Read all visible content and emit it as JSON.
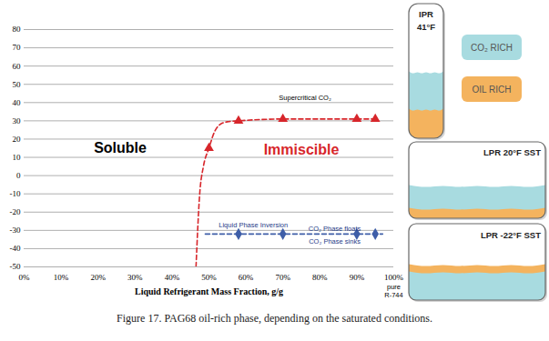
{
  "chart_data": {
    "type": "scatter",
    "x_label": "Liquid Refrigerant Mass Fraction, g/g",
    "xlim": [
      0,
      100
    ],
    "xticks": [
      {
        "value": 0,
        "label": "0%"
      },
      {
        "value": 10,
        "label": "10%"
      },
      {
        "value": 20,
        "label": "20%"
      },
      {
        "value": 30,
        "label": "30%"
      },
      {
        "value": 40,
        "label": "40%"
      },
      {
        "value": 50,
        "label": "50%"
      },
      {
        "value": 60,
        "label": "60%"
      },
      {
        "value": 70,
        "label": "70%"
      },
      {
        "value": 80,
        "label": "80%"
      },
      {
        "value": 90,
        "label": "90%"
      },
      {
        "value": 100,
        "label": "100%"
      }
    ],
    "ylim": [
      -50,
      80
    ],
    "yticks": [
      -50,
      -40,
      -30,
      -20,
      -10,
      0,
      10,
      20,
      30,
      40,
      50,
      60,
      70,
      80
    ],
    "grid": "y",
    "series": [
      {
        "type": "line",
        "color": "#d7262b",
        "line_style": "dashed",
        "x": [
          46.5,
          47.5,
          48.5,
          50,
          51.5,
          53,
          55,
          58,
          70,
          90,
          95
        ],
        "values": [
          -50,
          -10,
          5,
          15,
          24,
          28,
          29.5,
          30,
          31,
          31,
          31
        ]
      },
      {
        "type": "scatter",
        "color": "#d7262b",
        "marker": "triangle",
        "x": [
          50,
          58,
          70,
          90,
          95
        ],
        "values": [
          15,
          30,
          31,
          31,
          31
        ]
      },
      {
        "type": "line",
        "color": "#3e5ea8",
        "line_style": "dashed",
        "x": [
          49,
          97
        ],
        "values": [
          -32,
          -32
        ]
      },
      {
        "type": "scatter",
        "color": "#3e5ea8",
        "marker": "diamond",
        "x": [
          58,
          70,
          90,
          95
        ],
        "values": [
          -32,
          -32,
          -32,
          -32
        ]
      }
    ],
    "region_labels": [
      {
        "text": "Soluble",
        "x": 26,
        "y": 15,
        "color": "#000000"
      },
      {
        "text": "Immiscible",
        "x": 75,
        "y": 14,
        "color": "#d7262b"
      }
    ],
    "annotations": [
      {
        "text": "Supercritical CO₂",
        "x": 76,
        "y": 43,
        "color": "#000000"
      },
      {
        "text": "Liquid Phase Inversion",
        "x": 62,
        "y": -27,
        "color": "#1f3c88"
      },
      {
        "text": "CO₂ Phase floats",
        "x": 84,
        "y": -29,
        "color": "#1f3c88"
      },
      {
        "text": "CO₂ Phase sinks",
        "x": 84,
        "y": -36,
        "color": "#1f3c88"
      },
      {
        "text": "pure\nR-744",
        "x": 100,
        "y": -63,
        "color": "#000000"
      }
    ]
  },
  "diagram": {
    "legend": [
      {
        "label": "CO₂ RICH",
        "color": "#a8dbe0"
      },
      {
        "label": "OIL RICH",
        "color": "#f4b35e"
      }
    ],
    "panels": [
      {
        "label": "IPR\n41°F",
        "layers": [
          0,
          1
        ]
      },
      {
        "label": "LPR 20°F SST",
        "layers": [
          0,
          1
        ]
      },
      {
        "label": "LPR -22°F SST",
        "layers": [
          1,
          0
        ]
      }
    ]
  },
  "caption": "Figure 17. PAG68 oil-rich phase, depending on the saturated conditions."
}
